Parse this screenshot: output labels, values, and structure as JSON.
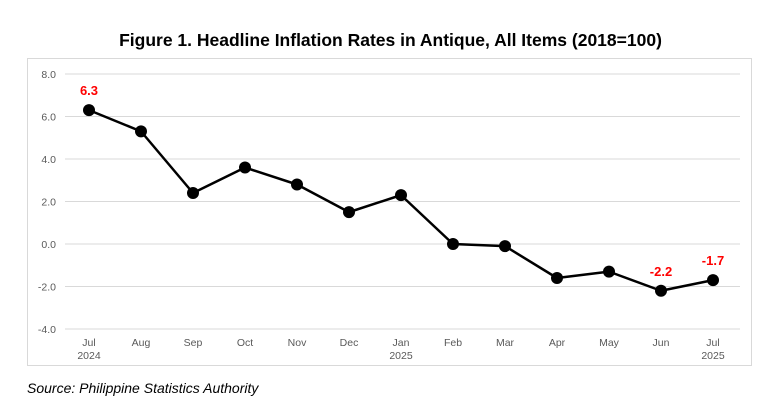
{
  "title": "Figure 1. Headline Inflation Rates in Antique, All Items (2018=100)",
  "source": "Source: Philippine Statistics Authority",
  "colors": {
    "line": "#000000",
    "marker": "#000000",
    "data_label": "#ff0000",
    "grid": "#d9d9d9",
    "axis_text": "#595959"
  },
  "chart_data": {
    "type": "line",
    "title": "Figure 1. Headline Inflation Rates in Antique, All Items (2018=100)",
    "xlabel": "",
    "ylabel": "",
    "categories": [
      {
        "month": "Jul",
        "year": "2024"
      },
      {
        "month": "Aug",
        "year": ""
      },
      {
        "month": "Sep",
        "year": ""
      },
      {
        "month": "Oct",
        "year": ""
      },
      {
        "month": "Nov",
        "year": ""
      },
      {
        "month": "Dec",
        "year": ""
      },
      {
        "month": "Jan",
        "year": "2025"
      },
      {
        "month": "Feb",
        "year": ""
      },
      {
        "month": "Mar",
        "year": ""
      },
      {
        "month": "Apr",
        "year": ""
      },
      {
        "month": "May",
        "year": ""
      },
      {
        "month": "Jun",
        "year": ""
      },
      {
        "month": "Jul",
        "year": "2025"
      }
    ],
    "series": [
      {
        "values": [
          6.3,
          5.3,
          2.4,
          3.6,
          2.8,
          1.5,
          2.3,
          0.0,
          -0.1,
          -1.6,
          -1.3,
          -2.2,
          -1.7
        ]
      }
    ],
    "data_labels": [
      {
        "index": 0,
        "text": "6.3"
      },
      {
        "index": 11,
        "text": "-2.2"
      },
      {
        "index": 12,
        "text": "-1.7"
      }
    ],
    "yticks": [
      "8.0",
      "6.0",
      "4.0",
      "2.0",
      "0.0",
      "-2.0",
      "-4.0"
    ],
    "ylim": [
      -4.0,
      8.0
    ],
    "grid": true,
    "legend": "none"
  }
}
